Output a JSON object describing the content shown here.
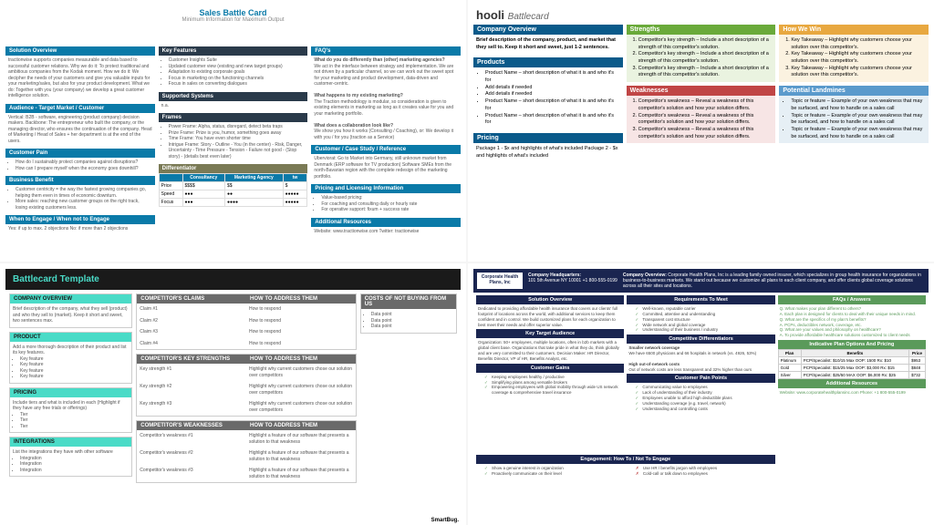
{
  "c1": {
    "title": "Sales Battle Card",
    "sub": "Minimum Information for Maximum Output",
    "solution": {
      "h": "Solution Overview",
      "b": "tractionwise supports companies measurable and data based to successful customer relations.\nWhy we do it: To protect traditional and ambitious companies from the Kodak moment.\nHow we do it: We decipher the needs of your customers and give you valuable inputs for your marketing/sales, but also for your product development.\nWhat we do: Together with you (your company) we develop a great customer intelligence solution."
    },
    "audience": {
      "h": "Audience - Target Market / Customer",
      "b": "Vertical: B2B - software, engineering (product company) decision makers.\nBackbone: The entrepreneur who built the company, or the managing director, who ensures the continuation of the company. Head of Marketing / Head of Sales + her department is at the end of the users."
    },
    "pain": {
      "h": "Customer Pain",
      "items": [
        "How do I sustainably protect companies against disruptions?",
        "How can I prepare myself when the economy goes downhill?"
      ]
    },
    "benefit": {
      "h": "Business Benefit",
      "items": [
        "Customer centricity = the way the fastest growing companies go, helping them even in times of economic downturn.",
        "More sales: reaching new customer groups on the right track, losing existing customers less."
      ]
    },
    "engage": {
      "h": "When to Engage / When not to Engage",
      "b": "Yes: if up to max. 2 objections\nNo: if more than 2 objections"
    },
    "features": {
      "h": "Key Features",
      "items": [
        "Customer Insights Suite",
        "Updated customer view (existing and new target groups)",
        "Adaptation to existing corporate goals",
        "Focus in marketing on the functioning channels",
        "Focus in sales on converting dialogues"
      ]
    },
    "systems": {
      "h": "Supported Systems",
      "b": "n.a."
    },
    "frames": {
      "h": "Frames",
      "items": [
        "Power Frame: Alpha, status, disregard, detect beta traps",
        "Prize Frame: Prize is you, humor, something goes away",
        "Time Frame: You have even shorter time",
        "Intrigue Frame: Story - Outline - You (in the center) - Risk, Danger, Uncertainty - Time Pressure - Tension - Failure not good - (Stop story) - (details best even later)"
      ]
    },
    "diff": {
      "h": "Differentiator",
      "cols": [
        "",
        "Consultancy",
        "Marketing Agency",
        "tw"
      ],
      "rows": [
        [
          "Price",
          "$$$$",
          "$$",
          "$"
        ],
        [
          "Speed",
          "●●●",
          "●●",
          "●●●●●"
        ],
        [
          "Focus",
          "●●●",
          "●●●●",
          "●●●●●"
        ]
      ]
    },
    "faq": {
      "h": "FAQ's",
      "q1": "What do you do differently than (other) marketing agencies?",
      "a1": "We act in the interface between strategy and implementation. We are not driven by a particular channel, so we can work out the sweet spot for your marketing and product development, data-driven and customer-centric.",
      "q2": "What happens to my existing marketing?",
      "a2": "The Traction methodology is modular, so consideration is given to existing elements in marketing as long as it creates value for you and your marketing portfolio.",
      "q3": "What does a collaboration look like?",
      "a3": "We show you how it works (Consulting / Coaching), or: We develop it with you / for you (traction as a Service)"
    },
    "casestudy": {
      "h": "Customer / Case Study / Reference",
      "b": "Uberviorat: Go to Market into Germany, still unknown market from Denmark (ERP software for TV production) Software SMEs from the north-Bavarian region with the complete redesign of the marketing portfolio."
    },
    "pricing": {
      "h": "Pricing and Licensing Information",
      "items": [
        "Value-based pricing:",
        "For coaching and consulting daily or hourly rate",
        "For operative support: fixum + success rate"
      ]
    },
    "resources": {
      "h": "Additional Resources",
      "b": "Website: www.tractionwise.com\nTwitter: tractionwise"
    }
  },
  "c2": {
    "logo": "hooli",
    "bc": "Battlecard",
    "overview": {
      "h": "Company Overview",
      "b": "Brief description of the company, product, and market that they sell to. Keep it short and sweet, just 1-2 sentences."
    },
    "products": {
      "h": "Products",
      "items": [
        "Product Name – short description of what it is and who it's for",
        "Add details if needed",
        "Add details if needed",
        "Product Name – short description of what it is and who it's for",
        "Product Name – short description of what it is and who it's for"
      ]
    },
    "pricing": {
      "h": "Pricing",
      "b": "Package 1 - $x and highlights of what's included\n\nPackage 2 - $x and highlights of what's included"
    },
    "strengths": {
      "h": "Strengths",
      "items": [
        "Competitor's key strength – Include a short description of a strength of this competitor's solution.",
        "Competitor's key strength – Include a short description of a strength of this competitor's solution.",
        "Competitor's key strength – Include a short description of a strength of this competitor's solution."
      ]
    },
    "weaknesses": {
      "h": "Weaknesses",
      "items": [
        "Competitor's weakness – Reveal a weakness of this competitor's solution and how your solution differs.",
        "Competitor's weakness – Reveal a weakness of this competitor's solution and how your solution differs.",
        "Competitor's weakness – Reveal a weakness of this competitor's solution and how your solution differs."
      ]
    },
    "win": {
      "h": "How We Win",
      "items": [
        "Key Takeaway – Highlight why customers choose your solution over this competitor's.",
        "Key Takeaway – Highlight why customers choose your solution over this competitor's.",
        "Key Takeaway – Highlight why customers choose your solution over this competitor's."
      ]
    },
    "landmines": {
      "h": "Potential Landmines",
      "items": [
        "Topic or feature – Example of your own weakness that may be surfaced, and how to handle on a sales call",
        "Topic or feature – Example of your own weakness that may be surfaced, and how to handle on a sales call",
        "Topic or feature – Example of your own weakness that may be surfaced, and how to handle on a sales call"
      ]
    }
  },
  "c3": {
    "title": "Battlecard Template",
    "overview": {
      "h": "COMPANY OVERVIEW",
      "b": "Brief description of the company, what they sell (product) and who they sell to (market). Keep it short and sweet, two sentences max."
    },
    "product": {
      "h": "PRODUCT",
      "b": "Add a more thorough description of their product and list its key features.",
      "items": [
        "Key feature",
        "Key feature",
        "Key feature",
        "Key feature"
      ]
    },
    "pricing": {
      "h": "PRICING",
      "b": "Include tiers and what is included in each (Highlight if they have any free trials or offerings)",
      "items": [
        "Tier",
        "Tier",
        "Tier"
      ]
    },
    "integ": {
      "h": "INTEGRATIONS",
      "b": "List the integrations they have with other software",
      "items": [
        "Integration",
        "Integration",
        "Integration"
      ]
    },
    "claims": {
      "h1": "COMPETITOR'S CLAIMS",
      "h2": "HOW TO ADDRESS THEM",
      "rows": [
        [
          "Claim #1",
          "How to respond"
        ],
        [
          "Claim #2",
          "How to respond"
        ],
        [
          "Claim #3",
          "How to respond"
        ],
        [
          "Claim #4",
          "How to respond"
        ]
      ]
    },
    "strengths": {
      "h1": "COMPETITOR'S KEY STRENGTHS",
      "h2": "HOW TO ADDRESS THEM",
      "rows": [
        [
          "Key strength #1",
          "Highlight why current customers chose our solution over competitors"
        ],
        [
          "Key strength #2",
          "Highlight why current customers chose our solution over competitors"
        ],
        [
          "Key strength #3",
          "Highlight why current customers chose our solution over competitors"
        ]
      ]
    },
    "weak": {
      "h1": "COMPETITOR'S WEAKNESSES",
      "h2": "HOW TO ADDRESS THEM",
      "rows": [
        [
          "Competitor's weakness #1",
          "Highlight a feature of our software that presents a solution to that weakness"
        ],
        [
          "Competitor's weakness #2",
          "Highlight a feature of our software that presents a solution to that weakness"
        ],
        [
          "Competitor's weakness #3",
          "Highlight a feature of our software that presents a solution to that weakness"
        ]
      ]
    },
    "costs": {
      "h": "COSTS OF NOT BUYING FROM US",
      "items": [
        "Data point",
        "Data point",
        "Data point"
      ]
    },
    "foot": "SmartBug."
  },
  "c4": {
    "company": "Corporate Health Plans, Inc",
    "hq": {
      "h": "Company Headquarters:",
      "b": "101 5th Avenue\nNY 10001\n+1 800-555-0199"
    },
    "ov": {
      "h": "Company Overview:",
      "b": "Corporate Health Plans, Inc is a leading family owned insurer, which specializes in group health insurance for organizations in business-to-business markets. We stand out because we customize all plans to each client company, and offer clients global coverage solutions across all their sites and locations."
    },
    "solution": {
      "h": "Solution Overview",
      "b": "Dedicated to providing affordable health insurance that covers our clients' full footprint of locations across the world, with additional services to keep them confident and in control.\n\nWe build customized plans for each organization to best meet their needs and offer superior value."
    },
    "target": {
      "h": "Key Target Audience",
      "b": "Organization: 50+ employees, multiple locations, often in b2b markets with a global client base. Organizations that take pride in what they do, think globally and are very committed to their customers.\n\nDecision Maker: HR Director, Benefits Director, VP of HR, Benefits Analyst, etc."
    },
    "gains": {
      "h": "Customer Gains",
      "items": [
        "Keeping employees healthy / productive",
        "Simplifying plans among versatile brokers",
        "Empowering employees with global mobility through wide US network coverage & comprehensive travel insurance"
      ]
    },
    "req": {
      "h": "Requirements To Meet",
      "items": [
        "Well-known, reputable carrier",
        "Committed, attentive and understanding",
        "Transparent cost structure",
        "Wide network and global coverage",
        "Understanding of their business / industry"
      ]
    },
    "diff": {
      "h": "Competitive Differentiators",
      "d1": {
        "t": "Smaller network coverage",
        "b": "We have 6500 physicians and 66 hospitals in network (vs. 4926, 53%)"
      },
      "d2": {
        "t": "High out-of-network costs",
        "b": "Out of network costs are less transparent and 32% higher than ours"
      }
    },
    "pains": {
      "h": "Customer Pain Points",
      "items": [
        "Communicating value to employees",
        "Lack of understanding of their industry",
        "Employees unable to afford high deductible plans",
        "Understanding coverage (e.g. travel, network)",
        "Understanding and controlling costs"
      ]
    },
    "eng": {
      "h": "Engagement: How To / Not To Engage",
      "yes": [
        "Show a genuine interest in organization",
        "Proactively communicate on their level"
      ],
      "no": [
        "Use HR / benefits jargon with employees",
        "Cold-call or talk down to employees"
      ]
    },
    "faq": {
      "h": "FAQs / Answers",
      "items": [
        "Q. What makes your plan different to others?",
        "A. Each plan is designed for clients to deal with their unique needs in mind.",
        "Q. What are the specifics of my plan's benefits?",
        "A. PCPs, deductibles network, coverage, etc.",
        "Q. What are your values and philosophy on healthcare?",
        "A. To provide affordable healthcare solutions customized to client needs"
      ]
    },
    "plans": {
      "h": "Indicative Plan Options And Pricing",
      "cols": [
        "Plan",
        "Benefits",
        "Price"
      ],
      "rows": [
        [
          "Platinum",
          "PCP/Specialist: $10/15\nMax OOP: 1500\nRx: $10",
          "$953"
        ],
        [
          "Gold",
          "PCP/Specialist: $15/25\nMax OOP: $3,000\nRx: $15",
          "$848"
        ],
        [
          "Silver",
          "PCP/Specialist: $25/50\nMAX OOP: $6,000\nRx: $25",
          "$732"
        ]
      ]
    },
    "res": {
      "h": "Additional Resources",
      "b": "Website: www.corporatehealthplansinc.com\nPhone: +1 800-555-0199"
    }
  }
}
